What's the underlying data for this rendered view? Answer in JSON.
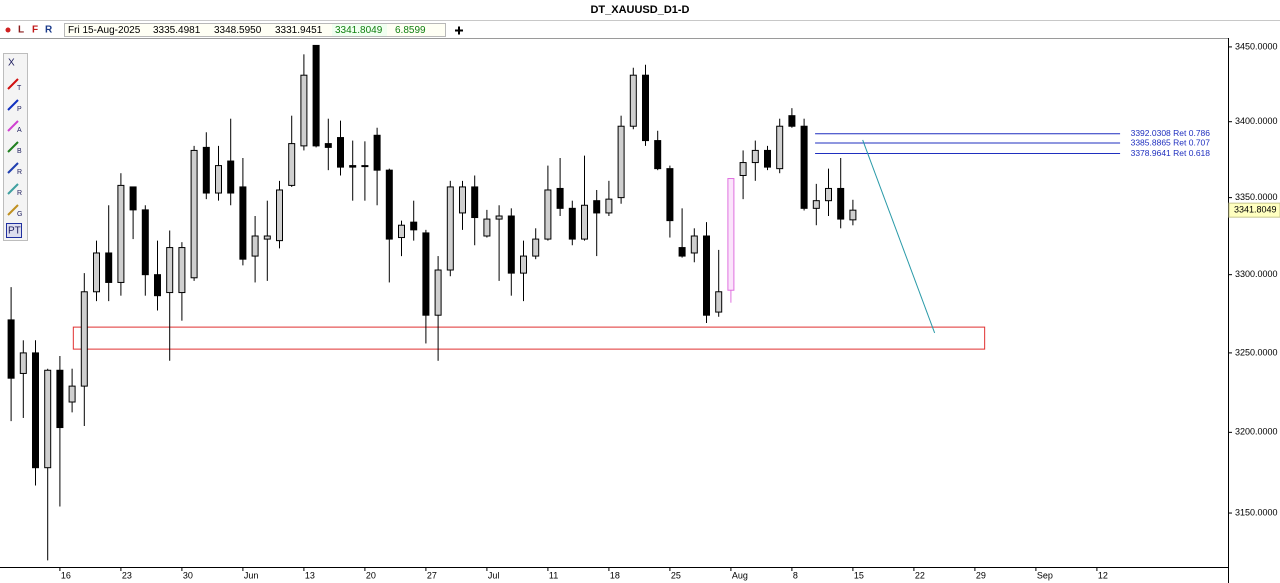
{
  "chart_data": {
    "type": "candlestick",
    "title": "DT_XAUUSD_D1-D",
    "toolbar": [
      "L",
      "F",
      "R"
    ],
    "tools": [
      "X",
      "T",
      "P",
      "A",
      "B",
      "R",
      "R",
      "G",
      "PT"
    ],
    "info": {
      "date": "Fri 15-Aug-2025",
      "values": [
        3335.4981,
        3348.595,
        3331.9451,
        3341.8049,
        6.8599
      ],
      "value_labels": [
        "3335.4981",
        "3348.5950",
        "3331.9451",
        "3341.8049",
        "6.8599"
      ]
    },
    "categories": [
      null,
      null,
      null,
      null,
      "16",
      null,
      null,
      null,
      null,
      "23",
      null,
      null,
      null,
      null,
      "30",
      null,
      null,
      null,
      null,
      "Jun",
      null,
      null,
      null,
      null,
      "13",
      null,
      null,
      null,
      null,
      "20",
      null,
      null,
      null,
      null,
      "27",
      null,
      null,
      null,
      null,
      "Jul",
      null,
      null,
      null,
      null,
      "11",
      null,
      null,
      null,
      null,
      "18",
      null,
      null,
      null,
      null,
      "25",
      null,
      null,
      null,
      null,
      "Aug",
      null,
      null,
      null,
      null,
      "8",
      null,
      null,
      null,
      null,
      "15",
      null,
      null,
      null,
      null,
      "22",
      null,
      null,
      null,
      null,
      "29",
      null,
      null,
      null,
      null,
      "Sep",
      null,
      null,
      null,
      null,
      "12",
      null,
      null
    ],
    "open": [
      3271,
      3237,
      3250,
      3178,
      3239,
      3219,
      3229,
      3289,
      3314,
      3295,
      3357,
      3342,
      3300,
      3288.5,
      3288.5,
      3298,
      3383,
      3353,
      3374,
      3357,
      3312,
      3323,
      3322,
      3358,
      3384,
      3451,
      3385.5,
      3389.5,
      3371,
      3371,
      3391,
      3368,
      3324,
      3334,
      3327,
      3274,
      3303,
      3340,
      3357,
      3325,
      3336,
      3338,
      3301,
      3312,
      3323,
      3356,
      3343,
      3323,
      3348,
      3340,
      3350,
      3397,
      3431,
      3387.5,
      3369,
      3317.5,
      3314,
      3325,
      3276,
      3290,
      3364.5,
      3373,
      3381,
      3369,
      3404,
      3397,
      3343,
      3348,
      3356,
      3335.4981,
      null,
      null,
      null,
      null,
      null,
      null,
      null,
      null,
      null,
      null,
      null,
      null,
      null,
      null,
      null,
      null,
      null,
      null,
      null,
      null,
      null,
      null
    ],
    "high": [
      3292,
      3258,
      3258,
      3240,
      3248,
      3240,
      3301,
      3322,
      3345,
      3366,
      3357,
      3345,
      3322,
      3328.6,
      3321,
      3384,
      3393,
      3384,
      3402,
      3376,
      3338,
      3348,
      3361,
      3404,
      3445,
      3451,
      3402,
      3400.7,
      3387.5,
      3387,
      3396,
      3369,
      3335,
      3348,
      3329,
      3312,
      3361,
      3361,
      3364.5,
      3342,
      3345,
      3343,
      3322,
      3330,
      3371,
      3376,
      3348,
      3377.6,
      3355,
      3361,
      3404,
      3436,
      3438,
      3394,
      3371,
      3343,
      3330,
      3334,
      3316,
      3362.5,
      3381,
      3387.5,
      3384,
      3402,
      3409,
      3402,
      3359,
      3369,
      3376,
      3348.595,
      null,
      null,
      null,
      null,
      null,
      null,
      null,
      null,
      null,
      null,
      null,
      null,
      null,
      null,
      null,
      null,
      null,
      null,
      null,
      null,
      null,
      null
    ],
    "low": [
      3207,
      3209,
      3167,
      3121,
      3154,
      3212.5,
      3204,
      3283,
      3283,
      3286.5,
      3323,
      3286.5,
      3277,
      3245,
      3270.5,
      3296,
      3349,
      3348,
      3345,
      3306,
      3295,
      3296,
      3317,
      3357,
      3381,
      3383,
      3368,
      3364.5,
      3348,
      3348,
      3345,
      3295,
      3312,
      3322,
      3256,
      3245,
      3299,
      3329,
      3319,
      3324,
      3296,
      3286.5,
      3283,
      3310,
      3322,
      3338,
      3319,
      3322,
      3312,
      3338,
      3346,
      3395,
      3384,
      3368,
      3324,
      3311,
      3308,
      3269,
      3273,
      3282,
      3349,
      3361,
      3368,
      3366,
      3396,
      3341.6,
      3332,
      3338,
      3330,
      3331.9451,
      null,
      null,
      null,
      null,
      null,
      null,
      null,
      null,
      null,
      null,
      null,
      null,
      null,
      null,
      null,
      null,
      null,
      null,
      null,
      null,
      null,
      null
    ],
    "close": [
      3234,
      3250,
      3178,
      3239,
      3203,
      3229,
      3289,
      3314,
      3295,
      3358,
      3342,
      3300,
      3286.5,
      3317.5,
      3317.5,
      3381,
      3353,
      3371,
      3353,
      3310,
      3325,
      3325,
      3355,
      3385.5,
      3431,
      3384,
      3383,
      3370,
      3370,
      3370.4,
      3368,
      3323,
      3332,
      3329,
      3274,
      3303,
      3357,
      3357,
      3337,
      3336,
      3338,
      3301,
      3312,
      3323,
      3355,
      3343,
      3323,
      3345,
      3340,
      3349,
      3397,
      3431,
      3387.5,
      3369,
      3335,
      3312,
      3325,
      3274,
      3289,
      3362.5,
      3373,
      3381,
      3370,
      3397,
      3397,
      3343,
      3348,
      3356,
      3336,
      3341.8049,
      null,
      null,
      null,
      null,
      null,
      null,
      null,
      null,
      null,
      null,
      null,
      null,
      null,
      null,
      null,
      null,
      null,
      null,
      null,
      null,
      null,
      null
    ],
    "colors": {
      "up": "#cfcfcf",
      "down": "#000000",
      "wick": "#000000"
    },
    "highlight": {
      "index": 59,
      "color": "#e070e0"
    },
    "log_scale": true,
    "grid": false,
    "ylim": [
      3117,
      3456
    ],
    "yticks": [
      {
        "value": 3150,
        "label": "3150.0000"
      },
      {
        "value": 3200,
        "label": "3200.0000"
      },
      {
        "value": 3250,
        "label": "3250.0000"
      },
      {
        "value": 3300,
        "label": "3300.0000"
      },
      {
        "value": 3350,
        "label": "3350.0000"
      },
      {
        "value": 3400,
        "label": "3400.0000"
      },
      {
        "value": 3450,
        "label": "3450.0000"
      }
    ],
    "fib": {
      "x": [
        65.9,
        90.9
      ],
      "color": "#1f2fbf",
      "levels": [
        {
          "value": 3392.0308,
          "label": "3392.0308 Ret 0.786"
        },
        {
          "value": 3385.8865,
          "label": "3385.8865 Ret 0.707"
        },
        {
          "value": 3378.9641,
          "label": "3378.9641 Ret 0.618"
        }
      ]
    },
    "zone": {
      "x": [
        5.1,
        79.8
      ],
      "y": [
        3252.4,
        3266.4
      ],
      "color": "#e03030"
    },
    "trendline": {
      "x": [
        69.8,
        75.7
      ],
      "y": [
        3387.9,
        3262.7
      ],
      "color": "#2a9aa8"
    }
  }
}
